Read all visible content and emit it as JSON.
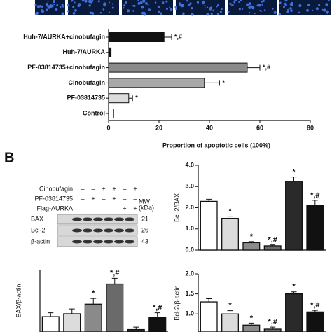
{
  "panel_labels": [
    "B"
  ],
  "blot": {
    "rows": [
      {
        "label": "Cinobufagin",
        "marks": [
          "–",
          "–",
          "+",
          "+",
          "–",
          "+"
        ]
      },
      {
        "label": "PF-03814735",
        "marks": [
          "–",
          "+",
          "–",
          "+",
          "–",
          "–"
        ]
      },
      {
        "label": "Flag-AURKA",
        "marks": [
          "–",
          "–",
          "–",
          "–",
          "+",
          "+"
        ]
      }
    ],
    "mw_header": [
      "MW",
      "(kDa)"
    ],
    "bands": [
      {
        "label": "BAX",
        "mw": "21"
      },
      {
        "label": "Bcl-2",
        "mw": "26"
      },
      {
        "label": "β-actin",
        "mw": "43"
      }
    ]
  },
  "chart_data": [
    {
      "type": "hbar",
      "categories": [
        "Huh-7/AURKA+cinobufagin",
        "Huh-7/AURKA",
        "PF-03814735+cinobufagin",
        "Cinobufagin",
        "PF-03814735",
        "Control"
      ],
      "values": [
        22,
        1,
        55,
        38,
        8,
        2
      ],
      "errors": [
        3,
        null,
        5,
        6,
        1.5,
        null
      ],
      "annotations": [
        "*,#",
        null,
        "*,#",
        "*",
        "*",
        null
      ],
      "colors": [
        "#111111",
        "#111111",
        "#8a8a8a",
        "#a8a8a8",
        "#dcdcdc",
        "#ffffff"
      ],
      "xlim": [
        0,
        80
      ],
      "xticks": [
        0,
        20,
        40,
        60,
        80
      ],
      "xlabel": "Proportion of apoptotic cells (100%)"
    },
    {
      "type": "bar",
      "ylabel": "Bcl-2/BAX",
      "values": [
        2.3,
        1.5,
        0.35,
        0.2,
        3.25,
        2.1
      ],
      "errors": [
        0.1,
        0.1,
        0.05,
        0.04,
        0.2,
        0.25
      ],
      "annotations": [
        null,
        "*",
        "*",
        "*,#",
        "*",
        "*,#"
      ],
      "colors": [
        "#ffffff",
        "#dcdcdc",
        "#8a8a8a",
        "#6a6a6a",
        "#2a2a2a",
        "#111111"
      ],
      "ylim": [
        0,
        4
      ],
      "yticks": [
        {
          "value": 0,
          "label": "0.0"
        },
        {
          "value": 1,
          "label": "1.0"
        },
        {
          "value": 2,
          "label": "2.0"
        },
        {
          "value": 3,
          "label": "3.0"
        },
        {
          "value": 4,
          "label": "4.0"
        }
      ]
    },
    {
      "type": "bar",
      "ylabel": "BAX/β-actin",
      "values": [
        0.62,
        0.68,
        0.88,
        1.3,
        0.35,
        0.6
      ],
      "errors": [
        0.08,
        0.1,
        0.12,
        0.12,
        0.05,
        0.1
      ],
      "annotations": [
        null,
        null,
        "*",
        "*,#",
        null,
        "*,#"
      ],
      "colors": [
        "#ffffff",
        "#dcdcdc",
        "#8a8a8a",
        "#6a6a6a",
        "#2a2a2a",
        "#111111"
      ],
      "ylim": [
        0.3,
        1.6
      ]
    },
    {
      "type": "bar",
      "ylabel": "Bcl-2/β-actin",
      "values": [
        1.3,
        1.0,
        0.72,
        0.62,
        1.5,
        1.05
      ],
      "errors": [
        0.08,
        0.08,
        0.05,
        0.05,
        0.05,
        0.04
      ],
      "annotations": [
        null,
        "*",
        "*",
        "*,#",
        "*",
        "*,#"
      ],
      "colors": [
        "#ffffff",
        "#dcdcdc",
        "#8a8a8a",
        "#6a6a6a",
        "#2a2a2a",
        "#111111"
      ],
      "ylim": [
        0.55,
        2
      ],
      "yticks": [
        {
          "value": 1,
          "label": "1.0"
        },
        {
          "value": 1.5,
          "label": "1.5"
        },
        {
          "value": 2,
          "label": "2.0"
        }
      ]
    }
  ]
}
